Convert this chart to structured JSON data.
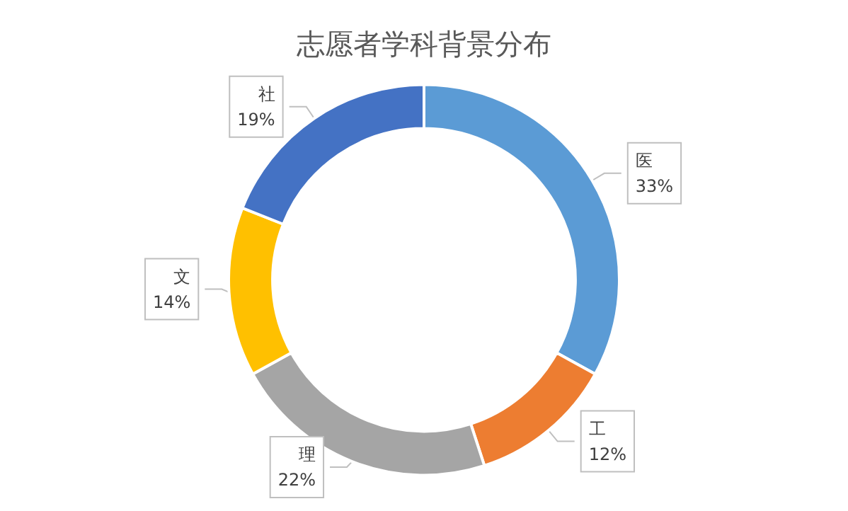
{
  "chart_data": {
    "type": "donut",
    "title": "志愿者学科背景分布",
    "categories": [
      "医",
      "工",
      "理",
      "文",
      "社"
    ],
    "values": [
      33,
      12,
      22,
      14,
      19
    ],
    "value_labels": [
      "33%",
      "12%",
      "22%",
      "14%",
      "19%"
    ],
    "colors": [
      "#5b9bd5",
      "#ed7d31",
      "#a5a5a5",
      "#ffc000",
      "#4472c4"
    ],
    "legend": false
  }
}
